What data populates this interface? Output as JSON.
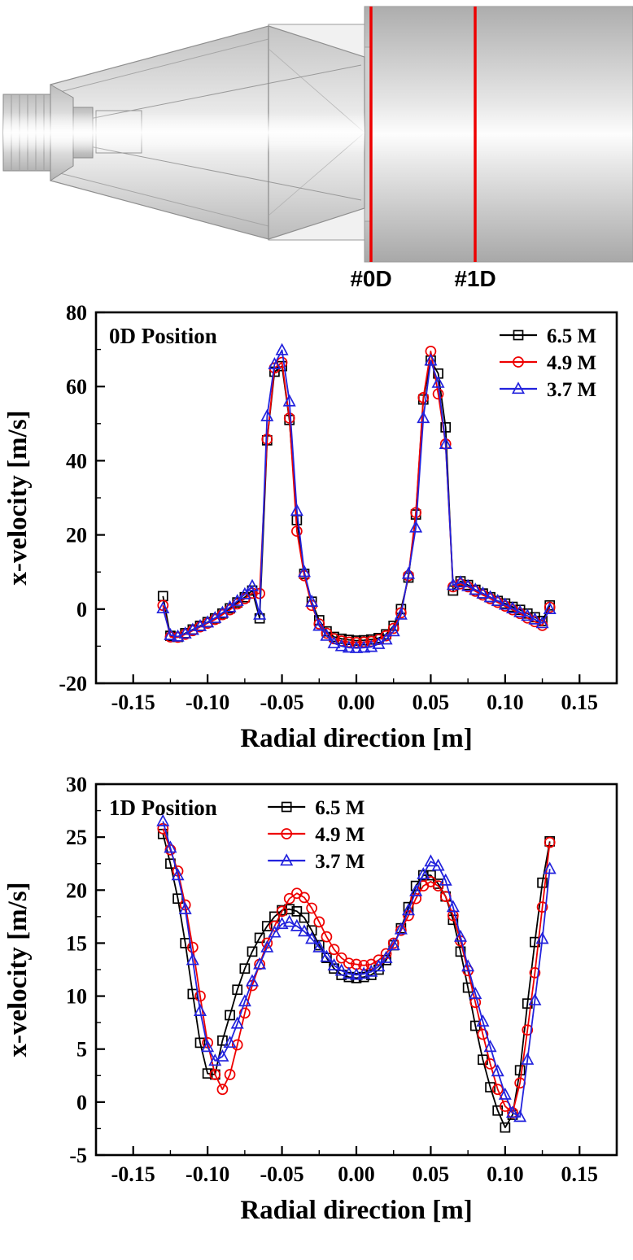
{
  "geometry": {
    "label_0d": "#0D",
    "label_1d": "#1D"
  },
  "chart_data": [
    {
      "type": "line",
      "title": "0D Position",
      "xlabel": "Radial direction [m]",
      "ylabel": "x-velocity [m/s]",
      "xlim": [
        -0.175,
        0.175
      ],
      "ylim": [
        -20,
        80
      ],
      "xticks": [
        -0.15,
        -0.1,
        -0.05,
        0.0,
        0.05,
        0.1,
        0.15
      ],
      "xtick_labels": [
        "-0.15",
        "-0.10",
        "-0.05",
        "0.00",
        "0.05",
        "0.10",
        "0.15"
      ],
      "yticks": [
        -20,
        0,
        20,
        40,
        60,
        80
      ],
      "ytick_labels": [
        "-20",
        "0",
        "20",
        "40",
        "60",
        "80"
      ],
      "x_minor_step": 0.025,
      "y_minor_step": 10,
      "legend_x": 0.775,
      "grid": false,
      "legend_position": "top-right",
      "x": [
        -0.13,
        -0.125,
        -0.12,
        -0.115,
        -0.11,
        -0.105,
        -0.1,
        -0.095,
        -0.09,
        -0.085,
        -0.08,
        -0.075,
        -0.07,
        -0.065,
        -0.06,
        -0.055,
        -0.05,
        -0.045,
        -0.04,
        -0.035,
        -0.03,
        -0.025,
        -0.02,
        -0.015,
        -0.01,
        -0.005,
        0,
        0.005,
        0.01,
        0.015,
        0.02,
        0.025,
        0.03,
        0.035,
        0.04,
        0.045,
        0.05,
        0.055,
        0.06,
        0.065,
        0.07,
        0.075,
        0.08,
        0.085,
        0.09,
        0.095,
        0.1,
        0.105,
        0.11,
        0.115,
        0.12,
        0.125,
        0.13
      ],
      "series": [
        {
          "name": "6.5 M",
          "color": "#000000",
          "marker": "square",
          "values": [
            3.5,
            -7.2,
            -7.5,
            -6.5,
            -5.5,
            -4.5,
            -3.5,
            -2.5,
            -1.2,
            0.2,
            1.8,
            3.2,
            5.0,
            -2.5,
            45.5,
            64.0,
            65.5,
            51.0,
            24.0,
            9.5,
            2.0,
            -3.0,
            -6.0,
            -7.5,
            -8.0,
            -8.3,
            -8.5,
            -8.4,
            -8.2,
            -7.8,
            -6.8,
            -4.5,
            0.0,
            8.5,
            25.5,
            56.5,
            67.0,
            63.5,
            49.0,
            5.0,
            7.5,
            6.5,
            5.2,
            4.2,
            3.2,
            2.2,
            1.5,
            0.6,
            -0.2,
            -1.2,
            -2.2,
            -3.2,
            1.0
          ]
        },
        {
          "name": "4.9 M",
          "color": "#ee0000",
          "marker": "circle",
          "values": [
            1.0,
            -7.5,
            -7.6,
            -6.8,
            -5.8,
            -4.8,
            -3.8,
            -2.8,
            -1.5,
            -0.2,
            1.4,
            2.8,
            4.3,
            4.2,
            45.8,
            65.0,
            66.5,
            51.5,
            21.0,
            9.0,
            1.0,
            -4.0,
            -6.5,
            -8.0,
            -8.6,
            -8.9,
            -9.0,
            -8.9,
            -8.7,
            -8.2,
            -7.2,
            -5.2,
            -1.0,
            9.0,
            26.0,
            57.0,
            69.5,
            58.0,
            44.5,
            6.0,
            6.8,
            6.0,
            4.8,
            3.8,
            2.8,
            1.8,
            0.8,
            -0.2,
            -1.2,
            -2.4,
            -3.4,
            -4.4,
            0.5
          ]
        },
        {
          "name": "3.7 M",
          "color": "#2222dd",
          "marker": "triangle",
          "values": [
            0.2,
            -7.0,
            -7.4,
            -6.6,
            -5.6,
            -4.6,
            -3.6,
            -2.4,
            -1.0,
            0.5,
            2.2,
            4.0,
            6.2,
            -1.5,
            52.0,
            66.0,
            69.8,
            56.0,
            26.5,
            10.0,
            2.0,
            -4.5,
            -7.2,
            -9.2,
            -10.0,
            -10.4,
            -10.5,
            -10.4,
            -10.2,
            -9.4,
            -8.2,
            -6.0,
            -1.5,
            9.5,
            22.0,
            51.5,
            67.0,
            61.0,
            44.5,
            6.5,
            7.2,
            6.2,
            5.2,
            4.2,
            3.2,
            2.2,
            1.2,
            0.2,
            -0.8,
            -1.8,
            -2.8,
            -3.8,
            0.0
          ]
        }
      ]
    },
    {
      "type": "line",
      "title": "1D Position",
      "xlabel": "Radial direction [m]",
      "ylabel": "x-velocity [m/s]",
      "xlim": [
        -0.175,
        0.175
      ],
      "ylim": [
        -5,
        30
      ],
      "xticks": [
        -0.15,
        -0.1,
        -0.05,
        0.0,
        0.05,
        0.1,
        0.15
      ],
      "xtick_labels": [
        "-0.15",
        "-0.10",
        "-0.05",
        "0.00",
        "0.05",
        "0.10",
        "0.15"
      ],
      "yticks": [
        -5,
        0,
        5,
        10,
        15,
        20,
        25,
        30
      ],
      "ytick_labels": [
        "-5",
        "0",
        "5",
        "10",
        "15",
        "20",
        "25",
        "30"
      ],
      "x_minor_step": 0.025,
      "y_minor_step": 2.5,
      "legend_x": 0.33,
      "grid": false,
      "legend_position": "top-center",
      "x": [
        -0.13,
        -0.125,
        -0.12,
        -0.115,
        -0.11,
        -0.105,
        -0.1,
        -0.095,
        -0.09,
        -0.085,
        -0.08,
        -0.075,
        -0.07,
        -0.065,
        -0.06,
        -0.055,
        -0.05,
        -0.045,
        -0.04,
        -0.035,
        -0.03,
        -0.025,
        -0.02,
        -0.015,
        -0.01,
        -0.005,
        0,
        0.005,
        0.01,
        0.015,
        0.02,
        0.025,
        0.03,
        0.035,
        0.04,
        0.045,
        0.05,
        0.055,
        0.06,
        0.065,
        0.07,
        0.075,
        0.08,
        0.085,
        0.09,
        0.095,
        0.1,
        0.105,
        0.11,
        0.115,
        0.12,
        0.125,
        0.13
      ],
      "series": [
        {
          "name": "6.5 M",
          "color": "#000000",
          "marker": "square",
          "values": [
            25.3,
            22.5,
            19.2,
            15.0,
            10.2,
            5.6,
            2.7,
            2.6,
            5.8,
            8.2,
            10.6,
            12.6,
            14.2,
            15.5,
            16.6,
            17.5,
            18.1,
            18.2,
            18.0,
            17.4,
            16.2,
            14.8,
            13.6,
            12.6,
            12.0,
            11.8,
            11.7,
            11.8,
            12.0,
            12.5,
            13.4,
            14.8,
            16.4,
            18.4,
            20.4,
            21.4,
            21.4,
            20.6,
            19.4,
            17.2,
            14.2,
            10.8,
            7.2,
            4.0,
            1.4,
            -0.8,
            -2.4,
            -1.2,
            3.0,
            9.3,
            15.1,
            20.7,
            24.6
          ]
        },
        {
          "name": "4.9 M",
          "color": "#ee0000",
          "marker": "circle",
          "values": [
            25.8,
            23.8,
            21.8,
            18.6,
            14.6,
            10.0,
            5.6,
            2.6,
            1.2,
            2.6,
            5.4,
            8.4,
            11.0,
            13.0,
            15.0,
            16.6,
            18.0,
            19.2,
            19.7,
            19.3,
            18.3,
            17.0,
            15.6,
            14.4,
            13.6,
            13.1,
            13.0,
            12.9,
            13.0,
            13.4,
            14.0,
            15.0,
            16.2,
            17.6,
            19.2,
            20.4,
            20.8,
            20.4,
            19.4,
            17.6,
            15.2,
            12.4,
            9.4,
            6.4,
            3.6,
            1.2,
            -0.4,
            -1.0,
            1.8,
            6.8,
            12.2,
            18.4,
            24.5
          ]
        },
        {
          "name": "3.7 M",
          "color": "#2222dd",
          "marker": "triangle",
          "values": [
            26.5,
            24.0,
            21.4,
            18.2,
            13.4,
            8.6,
            5.2,
            3.9,
            4.3,
            5.6,
            7.4,
            9.5,
            11.4,
            13.0,
            14.6,
            16.0,
            16.8,
            17.0,
            16.6,
            16.1,
            15.4,
            14.6,
            13.7,
            12.9,
            12.4,
            12.1,
            12.0,
            12.1,
            12.3,
            12.8,
            13.6,
            14.8,
            16.3,
            18.1,
            19.9,
            21.5,
            22.7,
            22.3,
            20.9,
            18.4,
            15.6,
            12.8,
            10.2,
            7.6,
            5.2,
            2.9,
            0.7,
            -1.0,
            -1.4,
            4.0,
            9.6,
            15.4,
            22.0
          ]
        }
      ]
    }
  ]
}
